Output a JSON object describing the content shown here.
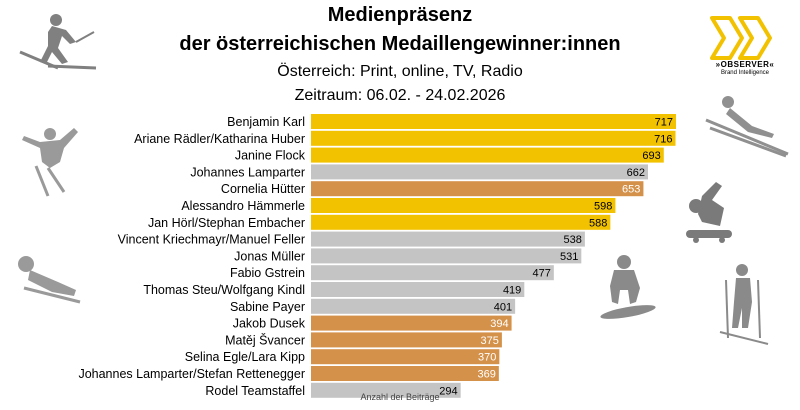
{
  "header": {
    "title_line1": "Medienpräsenz",
    "title_line2": "der österreichischen Medaillengewinner:innen",
    "subtitle_line1": "Österreich: Print, online, TV, Radio",
    "subtitle_line2": "Zeitraum: 06.02. - 24.02.2026"
  },
  "logo": {
    "name": "»OBSERVER«",
    "tagline": "Brand Intelligence",
    "color": "#f2c200"
  },
  "colors": {
    "gold": "#f2c200",
    "silver": "#c4c4c4",
    "bronze": "#d4914a"
  },
  "chart_data": {
    "type": "bar",
    "orientation": "horizontal",
    "xlabel": "Anzahl der Beiträge",
    "categories": [
      "Benjamin Karl",
      "Ariane Rädler/Katharina Huber",
      "Janine Flock",
      "Johannes Lamparter",
      "Cornelia Hütter",
      "Alessandro Hämmerle",
      "Jan Hörl/Stephan Embacher",
      "Vincent Kriechmayr/Manuel Feller",
      "Jonas Müller",
      "Fabio Gstrein",
      "Thomas Steu/Wolfgang Kindl",
      "Sabine Payer",
      "Jakob Dusek",
      "Matěj Švancer",
      "Selina Egle/Lara Kipp",
      "Johannes Lamparter/Stefan Rettenegger",
      "Rodel Teamstaffel"
    ],
    "values": [
      717,
      716,
      693,
      662,
      653,
      598,
      588,
      538,
      531,
      477,
      419,
      401,
      394,
      375,
      370,
      369,
      294
    ],
    "medals": [
      "gold",
      "gold",
      "gold",
      "silver",
      "bronze",
      "gold",
      "gold",
      "silver",
      "silver",
      "silver",
      "silver",
      "silver",
      "bronze",
      "bronze",
      "bronze",
      "bronze",
      "silver"
    ],
    "xlim": [
      0,
      717
    ]
  }
}
